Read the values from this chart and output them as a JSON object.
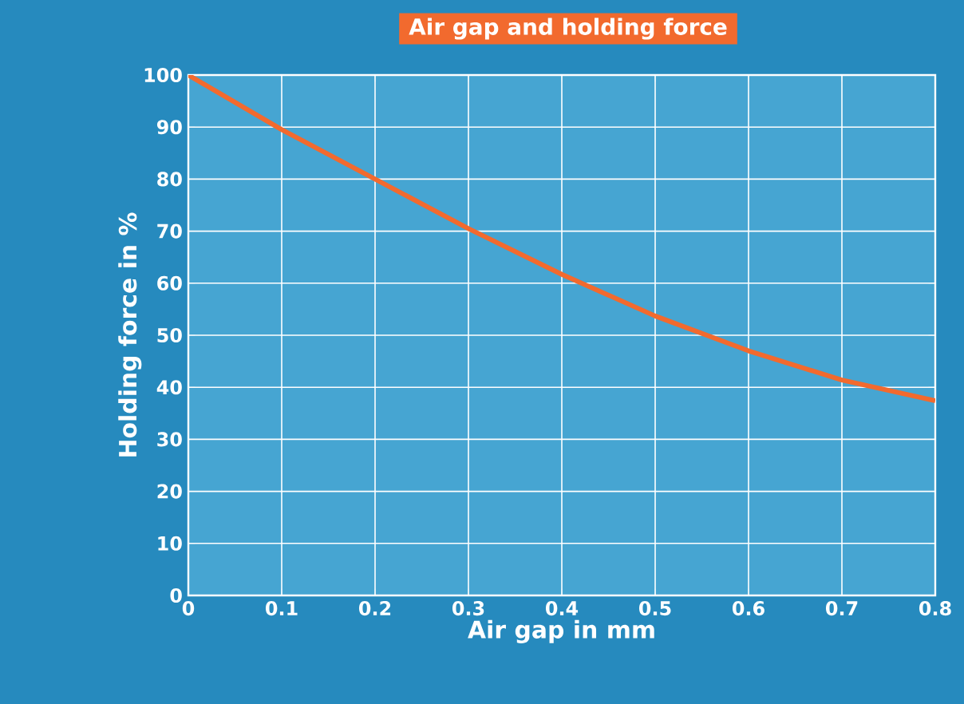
{
  "chart_data": {
    "type": "line",
    "title": "Air gap and holding force",
    "xlabel": "Air gap in mm",
    "ylabel": "Holding force in %",
    "x": [
      0,
      0.1,
      0.2,
      0.3,
      0.4,
      0.5,
      0.6,
      0.7,
      0.8
    ],
    "series": [
      {
        "color": "#f26a2e",
        "values": [
          100,
          89.5,
          80,
          70.5,
          61.7,
          53.7,
          47,
          41.4,
          37.4
        ]
      }
    ],
    "xlim": [
      0,
      0.8
    ],
    "xticks": [
      0,
      0.1,
      0.2,
      0.3,
      0.4,
      0.5,
      0.6,
      0.7,
      0.8
    ],
    "ylim": [
      0,
      100
    ],
    "yticks": [
      0,
      10,
      20,
      30,
      40,
      50,
      60,
      70,
      80,
      90,
      100
    ],
    "grid": true,
    "marker": "none",
    "line_style": "solid"
  }
}
